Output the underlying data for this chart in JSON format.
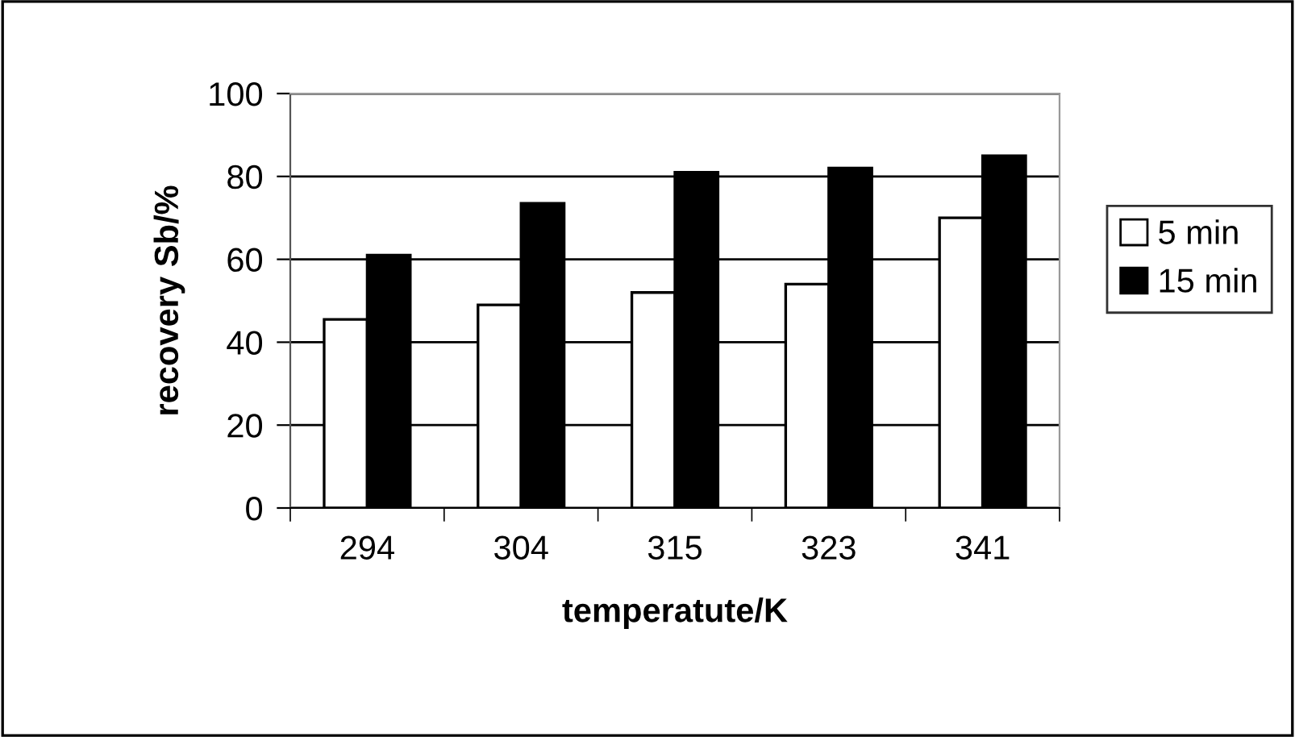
{
  "chart_data": {
    "type": "bar",
    "xlabel": "temperatute/K",
    "ylabel": "recovery Sb/%",
    "categories": [
      "294",
      "304",
      "315",
      "323",
      "341"
    ],
    "series": [
      {
        "name": "5 min",
        "color": "#ffffff",
        "values": [
          45.5,
          49,
          52,
          54,
          70
        ]
      },
      {
        "name": "15 min",
        "color": "#000000",
        "values": [
          61,
          73.5,
          81,
          82,
          85
        ]
      }
    ],
    "ylim": [
      0,
      100
    ],
    "yticks": [
      0,
      20,
      40,
      60,
      80,
      100
    ],
    "grid": "y",
    "legend": "right"
  }
}
